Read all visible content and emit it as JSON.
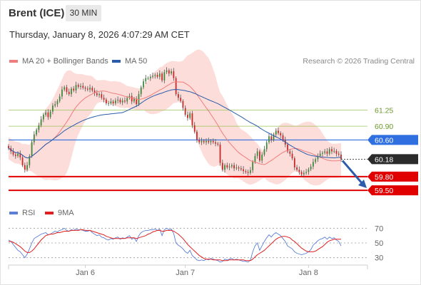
{
  "header": {
    "instrument": "Brent (ICE)",
    "interval": "30 MIN",
    "timestamp": "Thursday, January 8, 2026 4:07:29 AM CET"
  },
  "legend": {
    "bollinger_label": "MA 20 + Bollinger Bands",
    "bollinger_color": "#f07d7d",
    "ma50_label": "MA 50",
    "ma50_color": "#2a5cab",
    "credit": "Research © 2026 Trading Central"
  },
  "rsi_legend": {
    "rsi_label": "RSI",
    "rsi_color": "#5b7fd6",
    "ma_label": "9MA",
    "ma_color": "#e02020"
  },
  "chart_data": [
    {
      "type": "candlestick",
      "title": "Brent (ICE)",
      "x_ticks": [
        "Jan 6",
        "Jan 7",
        "Jan 8"
      ],
      "ylim": [
        59.3,
        62.1
      ],
      "levels": [
        {
          "value": 61.25,
          "label": "61.25",
          "kind": "resistance",
          "color": "#9cc55a"
        },
        {
          "value": 60.9,
          "label": "60.90",
          "kind": "resistance",
          "color": "#9cc55a"
        },
        {
          "value": 60.6,
          "label": "60.60",
          "kind": "pivot",
          "color": "#2f6fe0"
        },
        {
          "value": 59.8,
          "label": "59.80",
          "kind": "support",
          "color": "#e00000"
        },
        {
          "value": 59.5,
          "label": "59.50",
          "kind": "support",
          "color": "#e00000"
        }
      ],
      "last_price": {
        "value": 60.18,
        "label": "60.18"
      },
      "close": [
        60.42,
        60.35,
        60.28,
        60.25,
        60.3,
        60.22,
        60.05,
        59.95,
        60.05,
        60.25,
        60.55,
        60.72,
        60.82,
        60.92,
        61.05,
        61.15,
        61.2,
        61.1,
        61.22,
        61.35,
        61.38,
        61.45,
        61.55,
        61.7,
        61.75,
        61.65,
        61.6,
        61.72,
        61.68,
        61.8,
        61.76,
        61.78,
        61.74,
        61.72,
        61.7,
        61.74,
        61.68,
        61.62,
        61.58,
        61.6,
        61.52,
        61.48,
        61.4,
        61.4,
        61.44,
        61.4,
        61.46,
        61.48,
        61.42,
        61.46,
        61.44,
        61.52,
        61.56,
        61.44,
        61.5,
        61.38,
        61.6,
        61.75,
        61.88,
        61.95,
        61.95,
        61.98,
        62.0,
        62.02,
        61.98,
        62.05,
        61.9,
        62.08,
        62.12,
        62.05,
        62.1,
        61.95,
        61.6,
        61.52,
        61.45,
        61.3,
        61.15,
        61.08,
        61.18,
        60.92,
        60.78,
        60.6,
        60.55,
        60.58,
        60.55,
        60.58,
        60.55,
        60.58,
        60.55,
        60.52,
        60.5,
        60.1,
        59.95,
        60.05,
        60.0,
        60.02,
        60.05,
        59.98,
        60.0,
        59.98,
        59.96,
        59.92,
        59.9,
        59.88,
        59.94,
        60.12,
        60.25,
        60.35,
        60.15,
        60.28,
        60.4,
        60.55,
        60.68,
        60.6,
        60.72,
        60.8,
        60.75,
        60.7,
        60.6,
        60.5,
        60.35,
        60.3,
        60.2,
        60.0,
        59.95,
        59.9,
        59.85,
        59.88,
        59.9,
        59.96,
        60.02,
        60.12,
        60.18,
        60.25,
        60.3,
        60.32,
        60.35,
        60.3,
        60.4,
        60.35,
        60.36,
        60.3,
        60.28,
        60.18
      ],
      "series": [
        {
          "name": "MA 20 + Bollinger Bands",
          "color": "#f07d7d"
        },
        {
          "name": "MA 50",
          "color": "#2a5cab"
        }
      ]
    },
    {
      "type": "line",
      "title": "",
      "x_ticks": [
        "Jan 6",
        "Jan 7",
        "Jan 8"
      ],
      "y_ticks": [
        "70",
        "50",
        "30"
      ],
      "ylim": [
        20,
        80
      ],
      "reference_lines": [
        70,
        50,
        30
      ],
      "series": [
        {
          "name": "RSI",
          "color": "#5b7fd6",
          "values": [
            54,
            52,
            48,
            44,
            40,
            38,
            34,
            30,
            35,
            42,
            50,
            56,
            58,
            60,
            62,
            63,
            64,
            61,
            62,
            64,
            66,
            65,
            67,
            68,
            70,
            67,
            66,
            68,
            67,
            69,
            68,
            68,
            67,
            66,
            66,
            67,
            64,
            62,
            60,
            61,
            58,
            57,
            55,
            54,
            56,
            55,
            57,
            58,
            55,
            57,
            56,
            58,
            60,
            55,
            57,
            52,
            60,
            64,
            66,
            67,
            67,
            68,
            68,
            69,
            67,
            69,
            60,
            68,
            70,
            68,
            69,
            63,
            50,
            47,
            45,
            42,
            38,
            36,
            40,
            33,
            30,
            27,
            26,
            27,
            26,
            28,
            27,
            29,
            28,
            27,
            26,
            24,
            25,
            28,
            27,
            28,
            29,
            27,
            28,
            27,
            26,
            25,
            25,
            24,
            27,
            38,
            46,
            50,
            40,
            46,
            52,
            57,
            61,
            58,
            62,
            64,
            62,
            60,
            56,
            52,
            46,
            44,
            42,
            38,
            36,
            35,
            34,
            35,
            36,
            38,
            41,
            47,
            50,
            53,
            55,
            56,
            58,
            55,
            58,
            56,
            57,
            54,
            52,
            46
          ]
        },
        {
          "name": "9MA",
          "color": "#e02020",
          "values": [
            52,
            52,
            51,
            49,
            47,
            45,
            42,
            39,
            37,
            37,
            39,
            42,
            46,
            50,
            54,
            57,
            60,
            61,
            62,
            62,
            63,
            64,
            64,
            65,
            66,
            66,
            66,
            67,
            67,
            67,
            67,
            68,
            68,
            67,
            67,
            67,
            66,
            65,
            64,
            63,
            62,
            61,
            59,
            58,
            57,
            56,
            56,
            56,
            56,
            56,
            56,
            57,
            57,
            57,
            57,
            56,
            57,
            58,
            59,
            60,
            62,
            63,
            65,
            66,
            67,
            67,
            66,
            66,
            67,
            67,
            67,
            66,
            64,
            62,
            59,
            56,
            52,
            48,
            45,
            42,
            39,
            36,
            33,
            31,
            29,
            28,
            28,
            28,
            27,
            27,
            27,
            27,
            26,
            26,
            26,
            27,
            27,
            27,
            27,
            27,
            27,
            27,
            26,
            26,
            26,
            28,
            31,
            34,
            36,
            38,
            40,
            43,
            46,
            49,
            52,
            55,
            57,
            58,
            59,
            59,
            58,
            57,
            54,
            52,
            49,
            46,
            43,
            41,
            39,
            38,
            38,
            38,
            39,
            41,
            43,
            45,
            48,
            51,
            53,
            54,
            55,
            55,
            55,
            55
          ]
        }
      ]
    }
  ]
}
